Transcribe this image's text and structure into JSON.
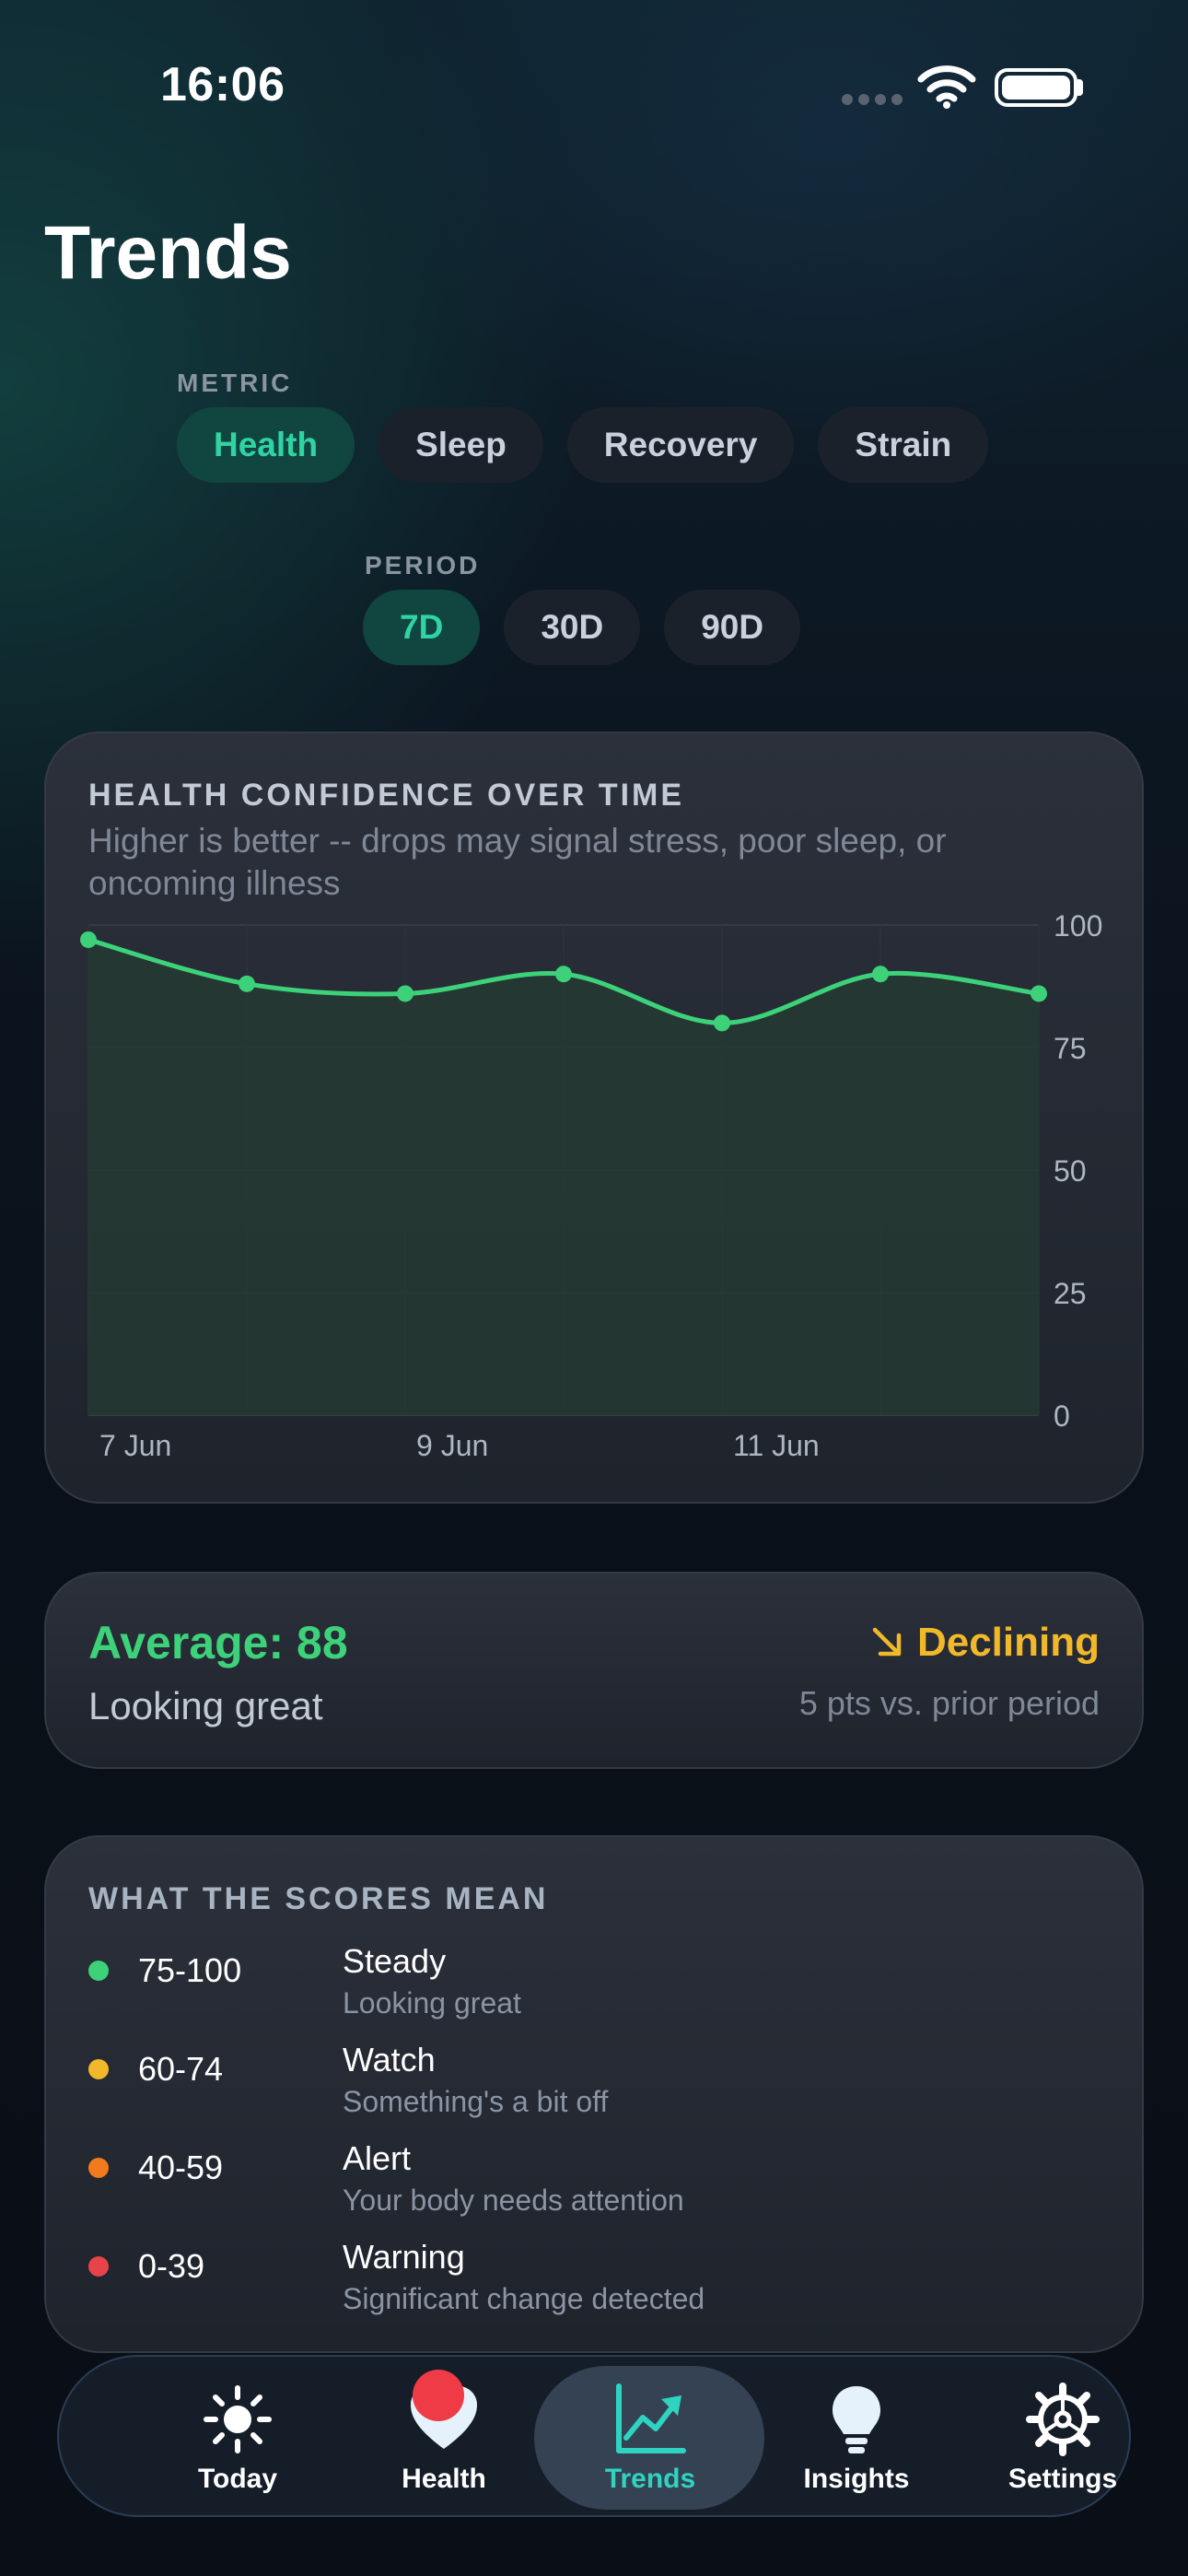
{
  "status_bar": {
    "time": "16:06"
  },
  "page_title": "Trends",
  "metric": {
    "label": "METRIC",
    "options": [
      "Health",
      "Sleep",
      "Recovery",
      "Strain"
    ],
    "selected": "Health"
  },
  "period": {
    "label": "PERIOD",
    "options": [
      "7D",
      "30D",
      "90D"
    ],
    "selected": "7D"
  },
  "chart_card": {
    "title": "HEALTH CONFIDENCE OVER TIME",
    "subtitle": "Higher is better -- drops may signal stress, poor sleep, or oncoming illness"
  },
  "chart_data": {
    "type": "area",
    "title": "HEALTH CONFIDENCE OVER TIME",
    "subtitle": "Higher is better -- drops may signal stress, poor sleep, or oncoming illness",
    "x": [
      "7 Jun",
      "8 Jun",
      "9 Jun",
      "10 Jun",
      "11 Jun",
      "12 Jun",
      "13 Jun"
    ],
    "x_tick_labels": [
      "7 Jun",
      "9 Jun",
      "11 Jun"
    ],
    "series": [
      {
        "values": [
          97,
          88,
          86,
          90,
          80,
          90,
          86
        ]
      }
    ],
    "ylim": [
      0,
      100
    ],
    "y_ticks": [
      0,
      25,
      50,
      75,
      100
    ],
    "y_axis_side": "right",
    "grid": true,
    "line_color": "#3dd17a",
    "fill_color": "#243a33"
  },
  "summary": {
    "average_label": "Average: 88",
    "average_caption": "Looking great",
    "trend_icon": "arrow-down-right-icon",
    "trend_label": "Declining",
    "trend_caption": "5 pts vs. prior period"
  },
  "legend": {
    "title": "WHAT THE SCORES MEAN",
    "items": [
      {
        "range": "75-100",
        "name": "Steady",
        "desc": "Looking great",
        "color": "#3dd17a"
      },
      {
        "range": "60-74",
        "name": "Watch",
        "desc": "Something's a bit off",
        "color": "#f1b92a"
      },
      {
        "range": "40-59",
        "name": "Alert",
        "desc": "Your body needs attention",
        "color": "#f07a1c"
      },
      {
        "range": "0-39",
        "name": "Warning",
        "desc": "Significant change detected",
        "color": "#e8434a"
      }
    ]
  },
  "tabbar": {
    "tabs": [
      {
        "label": "Today",
        "icon": "sun-icon"
      },
      {
        "label": "Health",
        "icon": "heart-icon"
      },
      {
        "label": "Trends",
        "icon": "chart-trend-icon"
      },
      {
        "label": "Insights",
        "icon": "lightbulb-icon"
      },
      {
        "label": "Settings",
        "icon": "gear-icon"
      }
    ],
    "active": "Trends",
    "accent": "#2fd4c1",
    "badge_color": "#ef3b45"
  }
}
